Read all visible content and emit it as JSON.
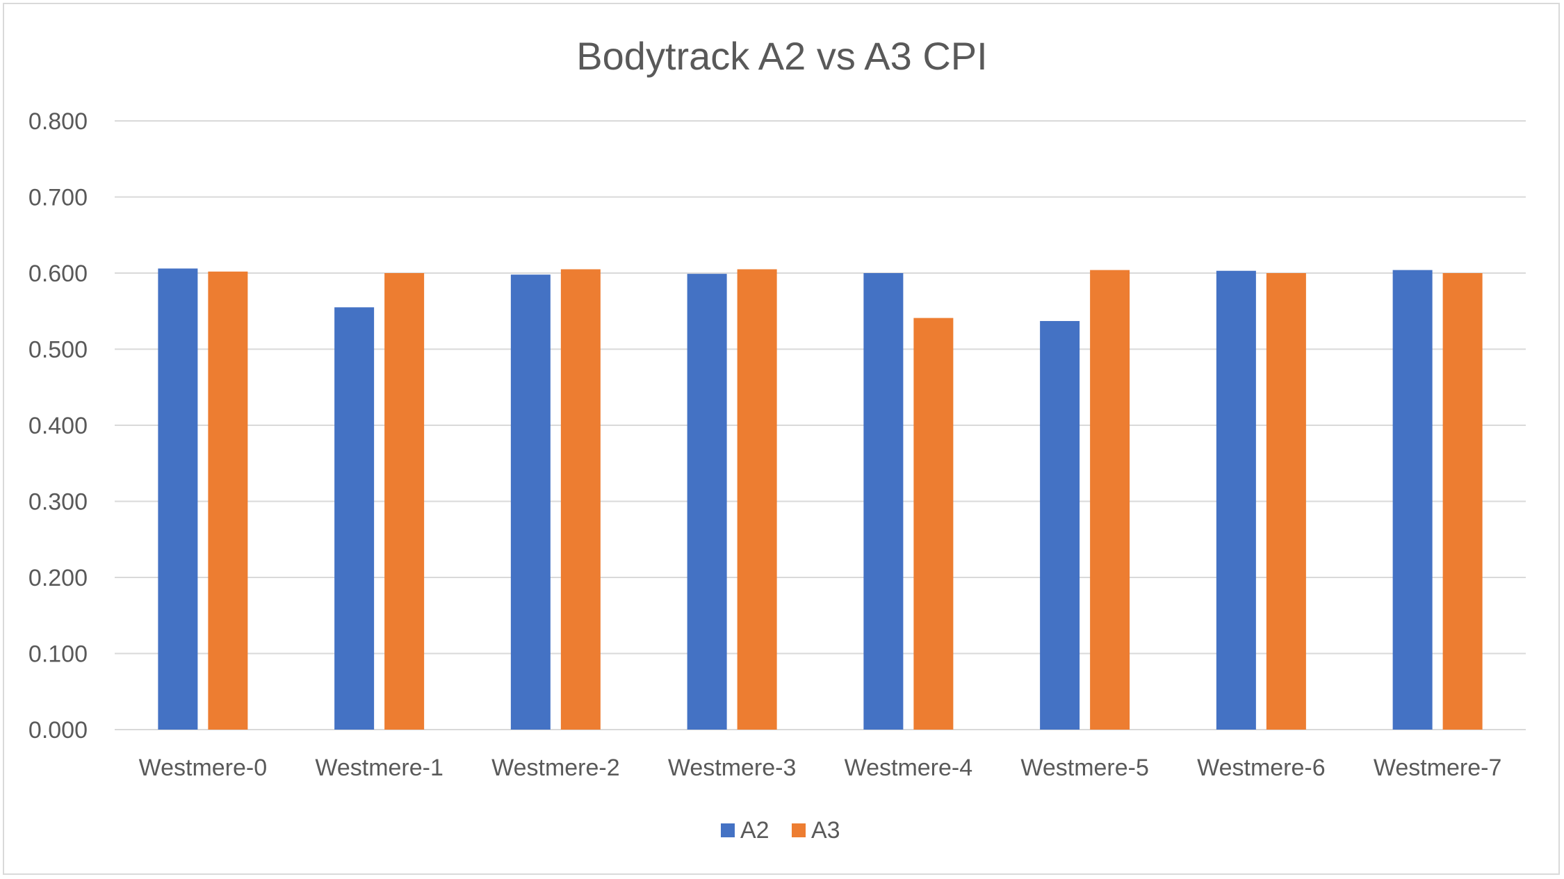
{
  "chart_data": {
    "type": "bar",
    "title": "Bodytrack A2 vs A3 CPI",
    "xlabel": "",
    "ylabel": "",
    "categories": [
      "Westmere-0",
      "Westmere-1",
      "Westmere-2",
      "Westmere-3",
      "Westmere-4",
      "Westmere-5",
      "Westmere-6",
      "Westmere-7"
    ],
    "series": [
      {
        "name": "A2",
        "color": "#4472c4",
        "values": [
          0.606,
          0.555,
          0.598,
          0.599,
          0.6,
          0.537,
          0.603,
          0.604
        ]
      },
      {
        "name": "A3",
        "color": "#ed7d31",
        "values": [
          0.602,
          0.6,
          0.605,
          0.605,
          0.541,
          0.604,
          0.6,
          0.6
        ]
      }
    ],
    "ylim": [
      0,
      0.8
    ],
    "yticks": [
      "0.000",
      "0.100",
      "0.200",
      "0.300",
      "0.400",
      "0.500",
      "0.600",
      "0.700",
      "0.800"
    ],
    "grid": true,
    "legend_position": "bottom"
  }
}
